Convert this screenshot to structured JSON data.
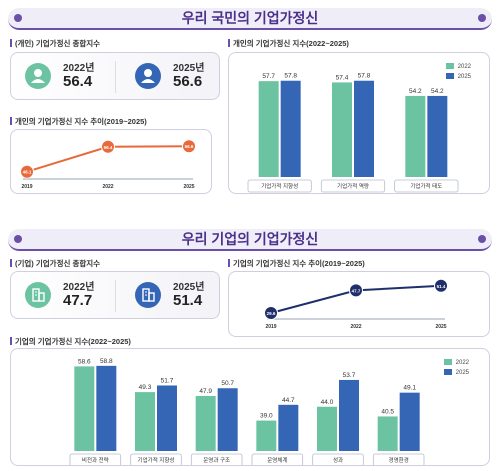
{
  "colors": {
    "green": "#6cc3a2",
    "blue": "#3566b5",
    "orange": "#e8693b",
    "navy": "#1f2f6b",
    "purple": "#6b4fa8"
  },
  "icons": {
    "person": "person-icon",
    "building": "building-icon"
  },
  "section1": {
    "banner": "우리 국민의 기업가정신",
    "summary_title": "(개인) 기업가정신 종합지수",
    "stat_a": {
      "year": "2022년",
      "value": "56.4"
    },
    "stat_b": {
      "year": "2025년",
      "value": "56.6"
    },
    "trend_title": "개인의 기업가정신 지수 추이(2019~2025)",
    "bars_title": "개인의 기업가정신 지수(2022~2025)"
  },
  "section2": {
    "banner": "우리 기업의 기업가정신",
    "summary_title": "(기업) 기업가정신 종합지수",
    "stat_a": {
      "year": "2022년",
      "value": "47.7"
    },
    "stat_b": {
      "year": "2025년",
      "value": "51.4"
    },
    "trend_title": "기업의 기업가정신 지수 추이(2019~2025)",
    "bars_title": "기업의 기업가정신 지수(2022~2025)"
  },
  "chart_data": [
    {
      "id": "personal-trend",
      "type": "line",
      "title": "개인의 기업가정신 지수 추이(2019~2025)",
      "x": [
        "2019",
        "2022",
        "2025"
      ],
      "series": [
        {
          "values": [
            48.1,
            56.4,
            56.6
          ]
        }
      ],
      "data_labels": [
        "48.1",
        "56.4",
        "56.6"
      ],
      "ylim": [
        46,
        58
      ],
      "grid": false
    },
    {
      "id": "personal-bars",
      "type": "bar",
      "title": "개인의 기업가정신 지수(2022~2025)",
      "categories": [
        "기업가적 지향성",
        "기업가적 역량",
        "기업가적 태도"
      ],
      "series": [
        {
          "name": "2022",
          "values": [
            57.7,
            57.4,
            54.2
          ],
          "labels": [
            "57.7",
            "57.4",
            "54.2"
          ]
        },
        {
          "name": "2025",
          "values": [
            57.8,
            57.8,
            54.2
          ],
          "labels": [
            "57.8",
            "57.8",
            "54.2"
          ]
        }
      ],
      "ylim": [
        35,
        62
      ],
      "legend": "top-right",
      "grid": false
    },
    {
      "id": "corporate-trend",
      "type": "line",
      "title": "기업의 기업가정신 지수 추이(2019~2025)",
      "x": [
        "2019",
        "2022",
        "2025"
      ],
      "series": [
        {
          "values": [
            29.6,
            47.7,
            51.4
          ]
        }
      ],
      "data_labels": [
        "29.6",
        "47.7",
        "51.4"
      ],
      "ylim": [
        24,
        56
      ],
      "grid": false
    },
    {
      "id": "corporate-bars",
      "type": "bar",
      "title": "기업의 기업가정신 지수(2022~2025)",
      "categories": [
        "비전과 전략",
        "기업가적 지향성",
        "운영과 구조",
        "운영체계",
        "성과",
        "경영환경"
      ],
      "series": [
        {
          "name": "2022",
          "values": [
            58.6,
            49.3,
            47.9,
            39.0,
            44.0,
            40.5
          ],
          "labels": [
            "58.6",
            "49.3",
            "47.9",
            "39.0",
            "44.0",
            "40.5"
          ]
        },
        {
          "name": "2025",
          "values": [
            58.8,
            51.7,
            50.7,
            44.7,
            53.7,
            49.1
          ],
          "labels": [
            "58.8",
            "51.7",
            "50.7",
            "44.7",
            "53.7",
            "49.1"
          ]
        }
      ],
      "ylim": [
        28,
        62
      ],
      "legend": "top-right",
      "grid": false
    }
  ]
}
